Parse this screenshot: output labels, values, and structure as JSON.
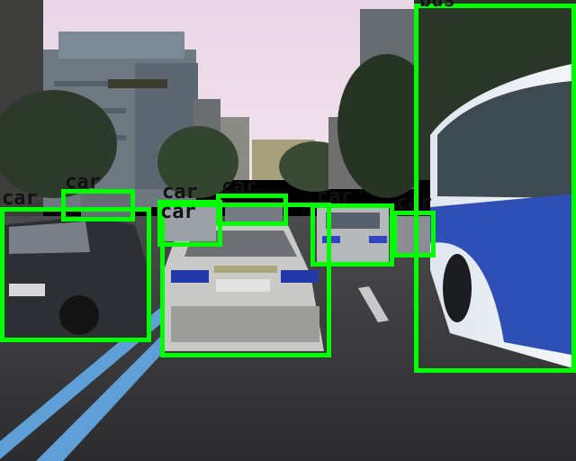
{
  "detections": [
    {
      "label": "car",
      "color": "#00ff00"
    },
    {
      "label": "car",
      "color": "#00ff00"
    },
    {
      "label": "car",
      "color": "#00ff00"
    },
    {
      "label": "car",
      "color": "#00ff00"
    },
    {
      "label": "car",
      "color": "#00ff00"
    },
    {
      "label": "car",
      "color": "#00ff00"
    },
    {
      "label": "car",
      "color": "#00ff00"
    },
    {
      "label": "bus",
      "color": "#00ff00"
    }
  ]
}
